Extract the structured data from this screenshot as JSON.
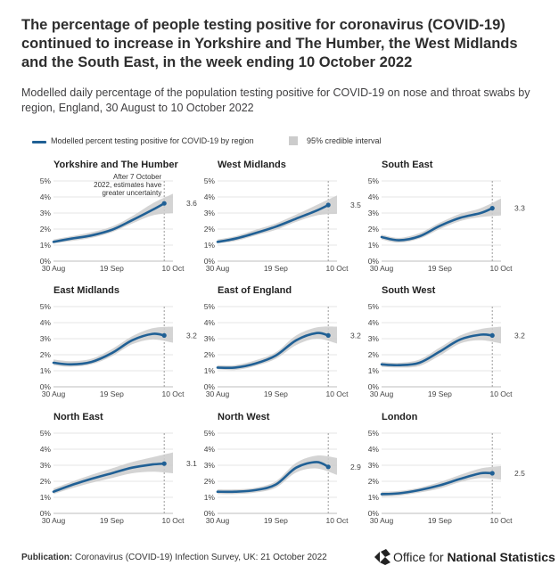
{
  "title": "The percentage of people testing positive for coronavirus (COVID-19) continued to increase in Yorkshire and The Humber, the West Midlands and the South East, in the week ending 10 October 2022",
  "subtitle": "Modelled daily percentage of the population testing positive for COVID-19 on nose and throat swabs by region, England, 30 August to 10 October 2022",
  "legend": {
    "line_label": "Modelled percent testing positive for COVID-19 by region",
    "band_label": "95% credible interval"
  },
  "colors": {
    "line": "#206095",
    "band": "#cccccc",
    "reference": "#9a9a9a"
  },
  "footer": {
    "publication_label": "Publication:",
    "publication_text": "Coronavirus (COVID-19) Infection Survey, UK: 21 October 2022",
    "logo_prefix": "Office for ",
    "logo_bold": "National Statistics",
    "logo_icon": "ons-logo-icon"
  },
  "chart_data": {
    "type": "line",
    "layout": "small-multiples 3x3",
    "x_ticks": [
      "30 Aug",
      "19 Sep",
      "10 Oct"
    ],
    "y_ticks": [
      "0%",
      "1%",
      "2%",
      "3%",
      "4%",
      "5%"
    ],
    "ylim": [
      0,
      5
    ],
    "x_dates": [
      "30 Aug",
      "5 Sep",
      "12 Sep",
      "19 Sep",
      "26 Sep",
      "3 Oct",
      "7 Oct"
    ],
    "reference_date": "7 Oct",
    "annotation": "After 7 October 2022, estimates have greater uncertainty",
    "panels": [
      {
        "name": "Yorkshire and The Humber",
        "end_label": "3.6",
        "values": [
          1.2,
          1.4,
          1.6,
          1.95,
          2.55,
          3.2,
          3.6
        ],
        "lower": [
          1.1,
          1.25,
          1.45,
          1.8,
          2.35,
          2.85,
          3.0
        ],
        "upper": [
          1.35,
          1.55,
          1.8,
          2.15,
          2.8,
          3.6,
          4.2
        ]
      },
      {
        "name": "West Midlands",
        "end_label": "3.5",
        "values": [
          1.2,
          1.4,
          1.75,
          2.15,
          2.65,
          3.15,
          3.5
        ],
        "lower": [
          1.1,
          1.25,
          1.6,
          1.95,
          2.45,
          2.85,
          2.95
        ],
        "upper": [
          1.35,
          1.55,
          1.95,
          2.35,
          2.9,
          3.5,
          4.1
        ]
      },
      {
        "name": "South East",
        "end_label": "3.3",
        "values": [
          1.5,
          1.3,
          1.55,
          2.2,
          2.7,
          3.0,
          3.3
        ],
        "lower": [
          1.35,
          1.15,
          1.4,
          2.0,
          2.5,
          2.75,
          2.85
        ],
        "upper": [
          1.65,
          1.45,
          1.75,
          2.4,
          2.95,
          3.3,
          3.9
        ]
      },
      {
        "name": "East Midlands",
        "end_label": "3.2",
        "values": [
          1.5,
          1.4,
          1.55,
          2.1,
          2.9,
          3.3,
          3.2
        ],
        "lower": [
          1.35,
          1.25,
          1.4,
          1.9,
          2.65,
          2.95,
          2.75
        ],
        "upper": [
          1.7,
          1.6,
          1.75,
          2.35,
          3.15,
          3.65,
          3.75
        ]
      },
      {
        "name": "East of England",
        "end_label": "3.2",
        "values": [
          1.2,
          1.2,
          1.45,
          1.95,
          2.9,
          3.35,
          3.2
        ],
        "lower": [
          1.1,
          1.05,
          1.3,
          1.75,
          2.6,
          3.0,
          2.7
        ],
        "upper": [
          1.35,
          1.35,
          1.65,
          2.15,
          3.2,
          3.7,
          3.75
        ]
      },
      {
        "name": "South West",
        "end_label": "3.2",
        "values": [
          1.4,
          1.35,
          1.5,
          2.2,
          2.95,
          3.25,
          3.2
        ],
        "lower": [
          1.25,
          1.2,
          1.3,
          1.95,
          2.7,
          2.9,
          2.7
        ],
        "upper": [
          1.55,
          1.5,
          1.7,
          2.45,
          3.2,
          3.6,
          3.75
        ]
      },
      {
        "name": "North East",
        "end_label": "3.1",
        "values": [
          1.35,
          1.75,
          2.15,
          2.5,
          2.85,
          3.05,
          3.1
        ],
        "lower": [
          1.2,
          1.55,
          1.9,
          2.2,
          2.5,
          2.6,
          2.5
        ],
        "upper": [
          1.55,
          1.95,
          2.4,
          2.8,
          3.2,
          3.5,
          3.8
        ]
      },
      {
        "name": "North West",
        "end_label": "2.9",
        "values": [
          1.35,
          1.35,
          1.45,
          1.8,
          2.85,
          3.2,
          2.9
        ],
        "lower": [
          1.2,
          1.2,
          1.3,
          1.6,
          2.55,
          2.8,
          2.4
        ],
        "upper": [
          1.5,
          1.5,
          1.6,
          2.0,
          3.15,
          3.6,
          3.45
        ]
      },
      {
        "name": "London",
        "end_label": "2.5",
        "values": [
          1.2,
          1.25,
          1.45,
          1.75,
          2.15,
          2.5,
          2.5
        ],
        "lower": [
          1.05,
          1.1,
          1.3,
          1.55,
          1.95,
          2.2,
          2.1
        ],
        "upper": [
          1.35,
          1.4,
          1.6,
          1.95,
          2.4,
          2.8,
          2.95
        ]
      }
    ]
  }
}
